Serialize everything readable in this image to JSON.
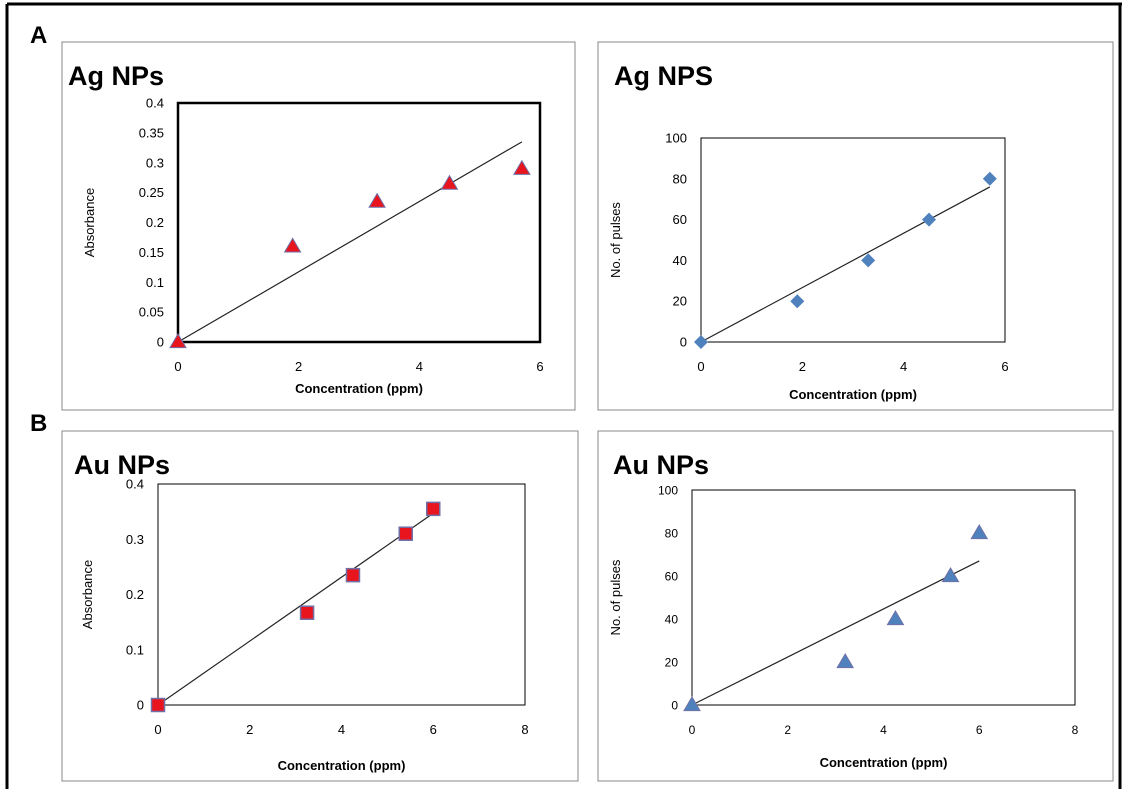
{
  "panel_labels": [
    "A",
    "B"
  ],
  "colors": {
    "red_marker": "#e8141e",
    "blue_marker": "#4f81bd",
    "marker_outline": "#7070a8",
    "trendline": "#222222"
  },
  "chart_data": [
    {
      "type": "scatter",
      "title": "Ag NPs",
      "xlabel": "Concentration (ppm)",
      "ylabel": "Absorbance",
      "xlim": [
        0,
        6
      ],
      "ylim": [
        0,
        0.4
      ],
      "xticks": [
        "0",
        "2",
        "4",
        "6"
      ],
      "yticks": [
        "0",
        "0.05",
        "0.1",
        "0.15",
        "0.2",
        "0.25",
        "0.3",
        "0.35",
        "0.4"
      ],
      "marker": "triangle",
      "marker_color": "#e8141e",
      "plot_border": "thick",
      "points": [
        {
          "x": 0,
          "y": 0
        },
        {
          "x": 1.9,
          "y": 0.16
        },
        {
          "x": 3.3,
          "y": 0.235
        },
        {
          "x": 4.5,
          "y": 0.265
        },
        {
          "x": 5.7,
          "y": 0.29
        }
      ],
      "trendline": {
        "x": [
          0,
          5.7
        ],
        "y": [
          0,
          0.335
        ]
      }
    },
    {
      "type": "scatter",
      "title": "Ag NPS",
      "xlabel": "Concentration (ppm)",
      "ylabel": "No. of pulses",
      "xlim": [
        0,
        6
      ],
      "ylim": [
        0,
        100
      ],
      "xticks": [
        "0",
        "2",
        "4",
        "6"
      ],
      "yticks": [
        "0",
        "20",
        "40",
        "60",
        "80",
        "100"
      ],
      "marker": "diamond",
      "marker_color": "#4f81bd",
      "plot_border": "thin",
      "points": [
        {
          "x": 0,
          "y": 0
        },
        {
          "x": 1.9,
          "y": 20
        },
        {
          "x": 3.3,
          "y": 40
        },
        {
          "x": 4.5,
          "y": 60
        },
        {
          "x": 5.7,
          "y": 80
        }
      ],
      "trendline": {
        "x": [
          0,
          5.7
        ],
        "y": [
          0,
          76
        ]
      }
    },
    {
      "type": "scatter",
      "title": "Au NPs",
      "xlabel": "Concentration (ppm)",
      "ylabel": "Absorbance",
      "xlim": [
        0,
        8
      ],
      "ylim": [
        0,
        0.4
      ],
      "xticks": [
        "0",
        "2",
        "4",
        "6",
        "8"
      ],
      "yticks": [
        "0",
        "0.1",
        "0.2",
        "0.3",
        "0.4"
      ],
      "marker": "square",
      "marker_color": "#e8141e",
      "plot_border": "thin",
      "points": [
        {
          "x": 0,
          "y": 0
        },
        {
          "x": 3.25,
          "y": 0.167
        },
        {
          "x": 4.25,
          "y": 0.235
        },
        {
          "x": 5.4,
          "y": 0.31
        },
        {
          "x": 6.0,
          "y": 0.355
        }
      ],
      "trendline": {
        "x": [
          0,
          6.0
        ],
        "y": [
          0,
          0.347
        ]
      }
    },
    {
      "type": "scatter",
      "title": "Au NPs",
      "xlabel": "Concentration (ppm)",
      "ylabel": "No. of pulses",
      "xlim": [
        0,
        8
      ],
      "ylim": [
        0,
        100
      ],
      "xticks": [
        "0",
        "2",
        "4",
        "6",
        "8"
      ],
      "yticks": [
        "0",
        "20",
        "40",
        "60",
        "80",
        "100"
      ],
      "marker": "triangle",
      "marker_color": "#4f81bd",
      "plot_border": "thin",
      "points": [
        {
          "x": 0,
          "y": 0
        },
        {
          "x": 3.2,
          "y": 20
        },
        {
          "x": 4.25,
          "y": 40
        },
        {
          "x": 5.4,
          "y": 60
        },
        {
          "x": 6.0,
          "y": 80
        }
      ],
      "trendline": {
        "x": [
          0,
          6.0
        ],
        "y": [
          0,
          67
        ]
      }
    }
  ]
}
